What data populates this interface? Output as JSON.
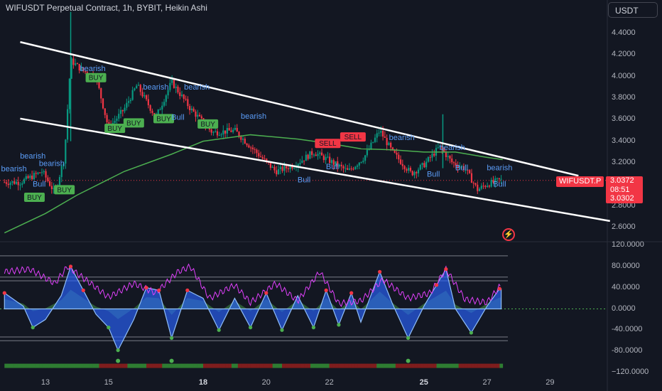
{
  "header": {
    "title": "WIFUSDT Perpetual Contract, 1h, BYBIT, Heikin Ashi",
    "currency_button": "USDT"
  },
  "price_label": {
    "symbol": "WIFUSDT.P",
    "last": "3.0372",
    "countdown": "08:51",
    "prev": "3.0302"
  },
  "colors": {
    "background": "#131722",
    "up": "#089981",
    "down": "#f23645",
    "ma": "#4caf50",
    "trendline": "#ffffff",
    "osc_fill": "#2962ff",
    "magenta": "#e040fb"
  },
  "icons": [
    "lightning-icon"
  ],
  "chart_data": [
    {
      "type": "candlestick",
      "title": "WIFUSDT Perpetual Contract, 1h, BYBIT, Heikin Ashi",
      "ylim": [
        2.4,
        4.6
      ],
      "price_ticks": [
        "4.4000",
        "4.2000",
        "4.0000",
        "3.8000",
        "3.6000",
        "3.4000",
        "3.2000",
        "3.0000",
        "2.8000",
        "2.6000"
      ],
      "x_ticks": [
        "13",
        "15",
        "18",
        "20",
        "22",
        "25",
        "27",
        "29"
      ],
      "bold_x_ticks": [
        "18",
        "25"
      ],
      "close_anchors": [
        {
          "x": 12.2,
          "y": 3.02
        },
        {
          "x": 12.9,
          "y": 3.12
        },
        {
          "x": 13.3,
          "y": 2.92
        },
        {
          "x": 13.6,
          "y": 3.25
        },
        {
          "x": 13.8,
          "y": 4.15
        },
        {
          "x": 14.2,
          "y": 4.05
        },
        {
          "x": 14.6,
          "y": 4.0
        },
        {
          "x": 15.0,
          "y": 3.52
        },
        {
          "x": 15.5,
          "y": 3.7
        },
        {
          "x": 15.9,
          "y": 3.92
        },
        {
          "x": 16.5,
          "y": 3.62
        },
        {
          "x": 17.0,
          "y": 3.95
        },
        {
          "x": 17.6,
          "y": 3.7
        },
        {
          "x": 18.3,
          "y": 3.48
        },
        {
          "x": 19.0,
          "y": 3.5
        },
        {
          "x": 19.5,
          "y": 3.35
        },
        {
          "x": 20.3,
          "y": 3.12
        },
        {
          "x": 20.9,
          "y": 3.18
        },
        {
          "x": 21.5,
          "y": 3.3
        },
        {
          "x": 22.0,
          "y": 3.22
        },
        {
          "x": 22.6,
          "y": 3.12
        },
        {
          "x": 23.1,
          "y": 3.25
        },
        {
          "x": 23.6,
          "y": 3.5
        },
        {
          "x": 24.0,
          "y": 3.3
        },
        {
          "x": 24.6,
          "y": 3.1
        },
        {
          "x": 25.0,
          "y": 3.18
        },
        {
          "x": 25.5,
          "y": 3.35
        },
        {
          "x": 25.9,
          "y": 3.2
        },
        {
          "x": 26.3,
          "y": 3.15
        },
        {
          "x": 26.7,
          "y": 2.95
        },
        {
          "x": 27.0,
          "y": 3.0
        },
        {
          "x": 27.4,
          "y": 3.04
        }
      ],
      "moving_average": [
        {
          "x": 11.7,
          "y": 2.55
        },
        {
          "x": 13.0,
          "y": 2.73
        },
        {
          "x": 14.0,
          "y": 2.9
        },
        {
          "x": 15.5,
          "y": 3.12
        },
        {
          "x": 17.0,
          "y": 3.28
        },
        {
          "x": 18.0,
          "y": 3.4
        },
        {
          "x": 19.5,
          "y": 3.46
        },
        {
          "x": 21.0,
          "y": 3.42
        },
        {
          "x": 22.0,
          "y": 3.38
        },
        {
          "x": 23.0,
          "y": 3.33
        },
        {
          "x": 24.0,
          "y": 3.32
        },
        {
          "x": 25.0,
          "y": 3.3
        },
        {
          "x": 26.0,
          "y": 3.3
        },
        {
          "x": 27.0,
          "y": 3.25
        },
        {
          "x": 27.5,
          "y": 3.23
        }
      ],
      "trendlines": [
        {
          "from": {
            "x": 12.2,
            "y": 4.32
          },
          "to": {
            "x": 29.9,
            "y": 3.08
          }
        },
        {
          "from": {
            "x": 12.2,
            "y": 3.61
          },
          "to": {
            "x": 30.9,
            "y": 2.66
          }
        }
      ],
      "current_price": 3.0372,
      "signals": [
        {
          "label": "BUY",
          "x": 12.65,
          "y": 2.87
        },
        {
          "label": "BUY",
          "x": 13.6,
          "y": 2.94
        },
        {
          "label": "BUY",
          "x": 14.6,
          "y": 3.98
        },
        {
          "label": "BUY",
          "x": 15.2,
          "y": 3.51
        },
        {
          "label": "BUY",
          "x": 15.8,
          "y": 3.56
        },
        {
          "label": "BUY",
          "x": 16.75,
          "y": 3.6
        },
        {
          "label": "BUY",
          "x": 18.15,
          "y": 3.55
        },
        {
          "label": "SELL",
          "x": 21.95,
          "y": 3.37
        },
        {
          "label": "SELL",
          "x": 22.75,
          "y": 3.43
        }
      ],
      "text_signals": [
        {
          "label": "bearish",
          "x": 12.0,
          "y": 3.12
        },
        {
          "label": "bearish",
          "x": 12.6,
          "y": 3.24
        },
        {
          "label": "bearish",
          "x": 13.2,
          "y": 3.17
        },
        {
          "label": "Bull",
          "x": 12.8,
          "y": 2.98
        },
        {
          "label": "bearish",
          "x": 14.5,
          "y": 4.05
        },
        {
          "label": "bearish",
          "x": 16.5,
          "y": 3.88
        },
        {
          "label": "bearish",
          "x": 17.8,
          "y": 3.88
        },
        {
          "label": "Bull",
          "x": 17.2,
          "y": 3.6
        },
        {
          "label": "bearish",
          "x": 19.6,
          "y": 3.61
        },
        {
          "label": "Bull",
          "x": 22.1,
          "y": 3.14
        },
        {
          "label": "bearish",
          "x": 24.3,
          "y": 3.41
        },
        {
          "label": "Bull",
          "x": 21.2,
          "y": 3.02
        },
        {
          "label": "Bull",
          "x": 25.3,
          "y": 3.07
        },
        {
          "label": "Bull",
          "x": 26.2,
          "y": 3.13
        },
        {
          "label": "bearish",
          "x": 25.9,
          "y": 3.32
        },
        {
          "label": "bearish",
          "x": 27.4,
          "y": 3.13
        },
        {
          "label": "Bull",
          "x": 27.4,
          "y": 2.98
        }
      ]
    },
    {
      "type": "area",
      "ylim": [
        -120,
        120
      ],
      "y_ticks": [
        "120.0000",
        "80.0000",
        "40.0000",
        "0.0000",
        "-40.0000",
        "-80.0000",
        "−120.0000"
      ],
      "levels": [
        100,
        60,
        53,
        -53,
        -60
      ],
      "oscillator_anchors": [
        {
          "x": 11.7,
          "y": 30
        },
        {
          "x": 12.3,
          "y": 5
        },
        {
          "x": 12.6,
          "y": -35
        },
        {
          "x": 13.0,
          "y": -20
        },
        {
          "x": 13.5,
          "y": 25
        },
        {
          "x": 13.8,
          "y": 80
        },
        {
          "x": 14.2,
          "y": 35
        },
        {
          "x": 14.6,
          "y": -10
        },
        {
          "x": 15.0,
          "y": -35
        },
        {
          "x": 15.3,
          "y": -78
        },
        {
          "x": 15.8,
          "y": -20
        },
        {
          "x": 16.2,
          "y": 40
        },
        {
          "x": 16.6,
          "y": 35
        },
        {
          "x": 17.0,
          "y": -55
        },
        {
          "x": 17.5,
          "y": 35
        },
        {
          "x": 18.0,
          "y": 20
        },
        {
          "x": 18.5,
          "y": -40
        },
        {
          "x": 19.0,
          "y": 20
        },
        {
          "x": 19.5,
          "y": -35
        },
        {
          "x": 20.0,
          "y": 30
        },
        {
          "x": 20.5,
          "y": -40
        },
        {
          "x": 21.0,
          "y": 25
        },
        {
          "x": 21.5,
          "y": -35
        },
        {
          "x": 21.9,
          "y": 35
        },
        {
          "x": 22.3,
          "y": -30
        },
        {
          "x": 22.7,
          "y": 30
        },
        {
          "x": 23.0,
          "y": -25
        },
        {
          "x": 23.6,
          "y": 70
        },
        {
          "x": 24.0,
          "y": 10
        },
        {
          "x": 24.5,
          "y": -55
        },
        {
          "x": 25.0,
          "y": 5
        },
        {
          "x": 25.4,
          "y": 45
        },
        {
          "x": 25.7,
          "y": 75
        },
        {
          "x": 26.0,
          "y": 0
        },
        {
          "x": 26.5,
          "y": -45
        },
        {
          "x": 27.0,
          "y": 5
        },
        {
          "x": 27.4,
          "y": 38
        }
      ],
      "magenta_anchors": [
        {
          "x": 11.7,
          "y": 70
        },
        {
          "x": 12.5,
          "y": 75
        },
        {
          "x": 13.3,
          "y": 48
        },
        {
          "x": 13.7,
          "y": 80
        },
        {
          "x": 14.5,
          "y": 45
        },
        {
          "x": 15.0,
          "y": 22
        },
        {
          "x": 15.8,
          "y": 48
        },
        {
          "x": 16.5,
          "y": 30
        },
        {
          "x": 17.2,
          "y": 70
        },
        {
          "x": 17.6,
          "y": 80
        },
        {
          "x": 18.2,
          "y": 20
        },
        {
          "x": 19.0,
          "y": 45
        },
        {
          "x": 19.5,
          "y": 12
        },
        {
          "x": 20.3,
          "y": 48
        },
        {
          "x": 21.0,
          "y": 15
        },
        {
          "x": 21.7,
          "y": 70
        },
        {
          "x": 22.3,
          "y": 10
        },
        {
          "x": 23.0,
          "y": 15
        },
        {
          "x": 23.7,
          "y": 55
        },
        {
          "x": 24.5,
          "y": 20
        },
        {
          "x": 25.2,
          "y": 30
        },
        {
          "x": 25.7,
          "y": 75
        },
        {
          "x": 26.3,
          "y": 18
        },
        {
          "x": 27.0,
          "y": 12
        },
        {
          "x": 27.4,
          "y": 42
        }
      ]
    }
  ]
}
